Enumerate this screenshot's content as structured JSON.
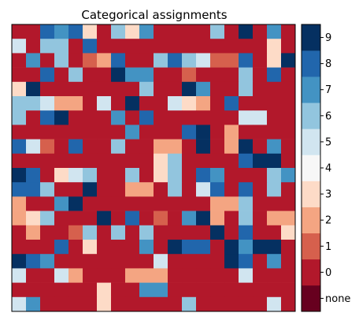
{
  "chart_data": {
    "type": "heatmap",
    "title": "Categorical assignments",
    "xlabel": "",
    "ylabel": "",
    "rows": 20,
    "cols": 20,
    "colorbar": {
      "labels": [
        "none",
        "0",
        "1",
        "2",
        "3",
        "4",
        "5",
        "6",
        "7",
        "8",
        "9"
      ],
      "colors": [
        "#67001f",
        "#b2182b",
        "#d6604d",
        "#f4a582",
        "#fddbc7",
        "#f7f7f7",
        "#d1e5f0",
        "#92c5de",
        "#4393c3",
        "#2166ac",
        "#053061"
      ]
    },
    "values": [
      [
        0,
        0,
        8,
        7,
        8,
        3,
        0,
        6,
        3,
        7,
        0,
        0,
        0,
        0,
        6,
        0,
        9,
        0,
        7,
        0
      ],
      [
        5,
        0,
        6,
        6,
        0,
        8,
        0,
        0,
        0,
        0,
        0,
        0,
        0,
        0,
        0,
        0,
        0,
        0,
        3,
        0
      ],
      [
        0,
        7,
        0,
        6,
        0,
        1,
        2,
        8,
        0,
        0,
        6,
        8,
        6,
        5,
        1,
        1,
        8,
        0,
        3,
        9
      ],
      [
        0,
        0,
        8,
        0,
        6,
        0,
        0,
        9,
        7,
        7,
        0,
        0,
        1,
        0,
        0,
        0,
        6,
        0,
        8,
        0
      ],
      [
        3,
        9,
        0,
        0,
        0,
        0,
        0,
        0,
        0,
        6,
        0,
        0,
        9,
        7,
        0,
        0,
        6,
        0,
        0,
        0
      ],
      [
        6,
        6,
        5,
        2,
        2,
        0,
        5,
        0,
        9,
        0,
        0,
        5,
        3,
        2,
        0,
        8,
        0,
        0,
        0,
        0
      ],
      [
        6,
        0,
        8,
        9,
        0,
        0,
        0,
        7,
        0,
        8,
        0,
        0,
        0,
        0,
        0,
        0,
        5,
        5,
        0,
        0
      ],
      [
        0,
        0,
        0,
        0,
        0,
        0,
        0,
        0,
        7,
        0,
        0,
        0,
        8,
        9,
        0,
        2,
        0,
        0,
        0,
        0
      ],
      [
        8,
        5,
        1,
        0,
        8,
        0,
        0,
        6,
        0,
        0,
        2,
        2,
        0,
        9,
        0,
        2,
        9,
        0,
        7,
        0
      ],
      [
        0,
        0,
        0,
        0,
        0,
        0,
        0,
        0,
        0,
        0,
        3,
        6,
        0,
        0,
        0,
        0,
        8,
        9,
        9,
        0
      ],
      [
        9,
        8,
        0,
        3,
        5,
        6,
        0,
        0,
        6,
        0,
        3,
        6,
        0,
        8,
        7,
        0,
        0,
        0,
        6,
        7
      ],
      [
        8,
        8,
        6,
        0,
        0,
        9,
        0,
        0,
        2,
        2,
        0,
        6,
        0,
        5,
        8,
        0,
        8,
        0,
        6,
        0
      ],
      [
        2,
        0,
        0,
        7,
        9,
        0,
        0,
        0,
        0,
        0,
        0,
        0,
        0,
        0,
        2,
        2,
        6,
        0,
        0,
        0
      ],
      [
        2,
        3,
        6,
        0,
        0,
        0,
        9,
        0,
        8,
        0,
        1,
        0,
        7,
        9,
        2,
        0,
        6,
        0,
        2,
        2
      ],
      [
        0,
        2,
        0,
        0,
        1,
        6,
        0,
        6,
        0,
        6,
        0,
        0,
        0,
        0,
        9,
        0,
        8,
        0,
        0,
        3
      ],
      [
        0,
        0,
        0,
        8,
        0,
        3,
        0,
        0,
        0,
        7,
        0,
        9,
        8,
        8,
        0,
        9,
        7,
        9,
        9,
        0
      ],
      [
        9,
        8,
        7,
        0,
        0,
        0,
        0,
        0,
        0,
        0,
        5,
        0,
        0,
        0,
        0,
        9,
        8,
        0,
        7,
        0
      ],
      [
        5,
        0,
        0,
        5,
        2,
        0,
        0,
        0,
        2,
        2,
        2,
        0,
        0,
        0,
        0,
        0,
        5,
        0,
        0,
        0
      ],
      [
        0,
        0,
        0,
        0,
        0,
        0,
        3,
        0,
        0,
        7,
        7,
        0,
        0,
        0,
        0,
        0,
        0,
        0,
        0,
        0
      ],
      [
        5,
        7,
        0,
        0,
        0,
        0,
        3,
        0,
        0,
        0,
        0,
        0,
        6,
        0,
        0,
        0,
        0,
        0,
        5,
        0
      ]
    ],
    "grid": false,
    "legend_position": "right colorbar"
  }
}
